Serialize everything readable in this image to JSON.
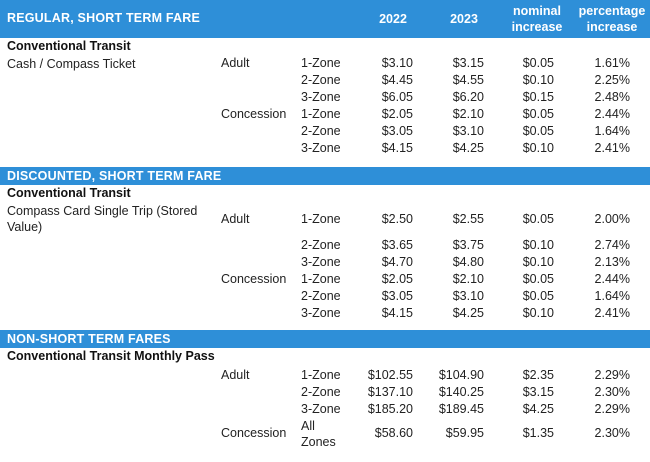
{
  "header": {
    "col_2022": "2022",
    "col_2023": "2023",
    "col_nominal_l1": "nominal",
    "col_nominal_l2": "increase",
    "col_pct_l1": "percentage",
    "col_pct_l2": "increase"
  },
  "sections": [
    {
      "title": "REGULAR, SHORT TERM FARE",
      "subtitle": "Conventional Transit",
      "description_l1": "Cash / Compass Ticket",
      "description_l2": "",
      "rows": [
        {
          "group": "Adult",
          "zone_l1": "1-Zone",
          "zone_l2": "",
          "y2022": "$3.10",
          "y2023": "$3.15",
          "nominal": "$0.05",
          "pct": "1.61%"
        },
        {
          "group": "",
          "zone_l1": "2-Zone",
          "zone_l2": "",
          "y2022": "$4.45",
          "y2023": "$4.55",
          "nominal": "$0.10",
          "pct": "2.25%"
        },
        {
          "group": "",
          "zone_l1": "3-Zone",
          "zone_l2": "",
          "y2022": "$6.05",
          "y2023": "$6.20",
          "nominal": "$0.15",
          "pct": "2.48%"
        },
        {
          "group": "Concession",
          "zone_l1": "1-Zone",
          "zone_l2": "",
          "y2022": "$2.05",
          "y2023": "$2.10",
          "nominal": "$0.05",
          "pct": "2.44%"
        },
        {
          "group": "",
          "zone_l1": "2-Zone",
          "zone_l2": "",
          "y2022": "$3.05",
          "y2023": "$3.10",
          "nominal": "$0.05",
          "pct": "1.64%"
        },
        {
          "group": "",
          "zone_l1": "3-Zone",
          "zone_l2": "",
          "y2022": "$4.15",
          "y2023": "$4.25",
          "nominal": "$0.10",
          "pct": "2.41%"
        }
      ]
    },
    {
      "title": "DISCOUNTED, SHORT TERM FARE",
      "subtitle": "Conventional Transit",
      "description_l1": "Compass Card Single Trip (Stored",
      "description_l2": "Value)",
      "rows": [
        {
          "group": "Adult",
          "zone_l1": "1-Zone",
          "zone_l2": "",
          "y2022": "$2.50",
          "y2023": "$2.55",
          "nominal": "$0.05",
          "pct": "2.00%"
        },
        {
          "group": "",
          "zone_l1": "2-Zone",
          "zone_l2": "",
          "y2022": "$3.65",
          "y2023": "$3.75",
          "nominal": "$0.10",
          "pct": "2.74%"
        },
        {
          "group": "",
          "zone_l1": "3-Zone",
          "zone_l2": "",
          "y2022": "$4.70",
          "y2023": "$4.80",
          "nominal": "$0.10",
          "pct": "2.13%"
        },
        {
          "group": "Concession",
          "zone_l1": "1-Zone",
          "zone_l2": "",
          "y2022": "$2.05",
          "y2023": "$2.10",
          "nominal": "$0.05",
          "pct": "2.44%"
        },
        {
          "group": "",
          "zone_l1": "2-Zone",
          "zone_l2": "",
          "y2022": "$3.05",
          "y2023": "$3.10",
          "nominal": "$0.05",
          "pct": "1.64%"
        },
        {
          "group": "",
          "zone_l1": "3-Zone",
          "zone_l2": "",
          "y2022": "$4.15",
          "y2023": "$4.25",
          "nominal": "$0.10",
          "pct": "2.41%"
        }
      ]
    },
    {
      "title": "NON-SHORT TERM FARES",
      "subtitle": "Conventional Transit Monthly Pass",
      "description_l1": "",
      "description_l2": "",
      "rows": [
        {
          "group": "Adult",
          "zone_l1": "1-Zone",
          "zone_l2": "",
          "y2022": "$102.55",
          "y2023": "$104.90",
          "nominal": "$2.35",
          "pct": "2.29%"
        },
        {
          "group": "",
          "zone_l1": "2-Zone",
          "zone_l2": "",
          "y2022": "$137.10",
          "y2023": "$140.25",
          "nominal": "$3.15",
          "pct": "2.30%"
        },
        {
          "group": "",
          "zone_l1": "3-Zone",
          "zone_l2": "",
          "y2022": "$185.20",
          "y2023": "$189.45",
          "nominal": "$4.25",
          "pct": "2.29%"
        },
        {
          "group": "Concession",
          "zone_l1": "All",
          "zone_l2": "Zones",
          "y2022": "$58.60",
          "y2023": "$59.95",
          "nominal": "$1.35",
          "pct": "2.30%"
        }
      ]
    }
  ]
}
